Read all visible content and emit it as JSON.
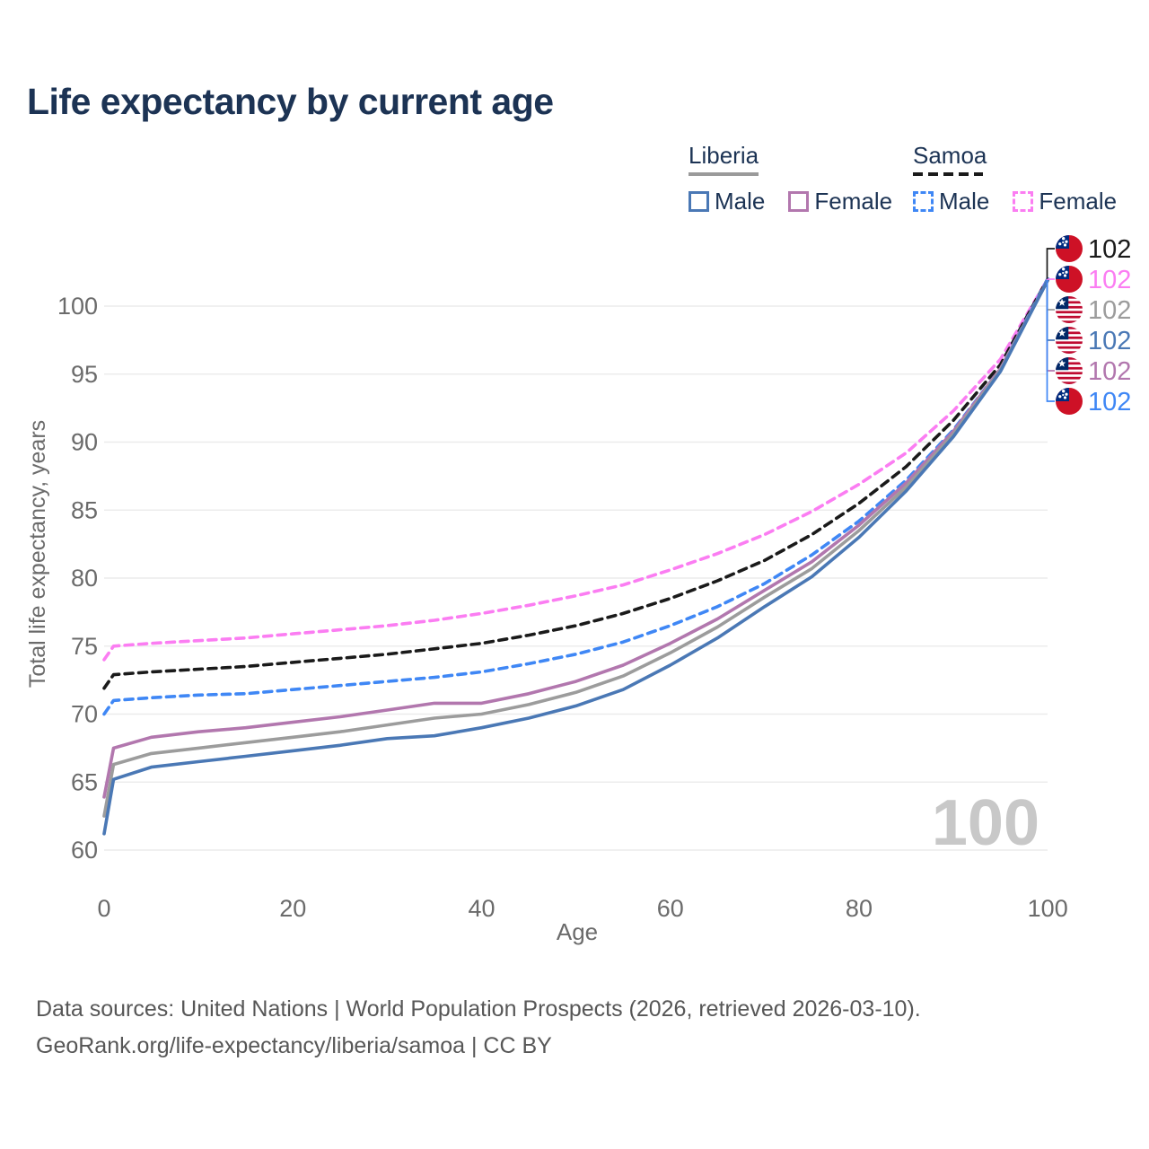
{
  "title": "Life expectancy by current age",
  "watermark": "100",
  "legend": {
    "groups": [
      {
        "label": "Liberia",
        "line_style": "solid",
        "underline_color": "#9a9a9a",
        "items": [
          {
            "label": "Male",
            "color": "#4a78b5"
          },
          {
            "label": "Female",
            "color": "#b277ae"
          }
        ]
      },
      {
        "label": "Samoa",
        "line_style": "dashed",
        "underline_color": "#1a1a1a",
        "items": [
          {
            "label": "Male",
            "color": "#3f87f5"
          },
          {
            "label": "Female",
            "color": "#fb7df2"
          }
        ]
      }
    ]
  },
  "chart_data": {
    "type": "line",
    "title": "Life expectancy by current age",
    "xlabel": "Age",
    "ylabel": "Total life expectancy, years",
    "xlim": [
      0,
      100
    ],
    "ylim": [
      58,
      103
    ],
    "x_ticks": [
      0,
      20,
      40,
      60,
      80,
      100
    ],
    "y_ticks": [
      60,
      65,
      70,
      75,
      80,
      85,
      90,
      95,
      100
    ],
    "grid": "horizontal-only",
    "legend_position": "top-right",
    "ages": [
      0,
      1,
      5,
      10,
      15,
      20,
      25,
      30,
      35,
      40,
      45,
      50,
      55,
      60,
      65,
      70,
      75,
      80,
      85,
      90,
      95,
      100
    ],
    "series": [
      {
        "name": "Samoa Female",
        "country": "Samoa",
        "sex": "Female",
        "style": "dashed",
        "color": "#fb7df2",
        "values": [
          74.0,
          75.0,
          75.2,
          75.4,
          75.6,
          75.9,
          76.2,
          76.5,
          76.9,
          77.4,
          78.0,
          78.7,
          79.5,
          80.6,
          81.8,
          83.2,
          84.9,
          86.9,
          89.2,
          92.3,
          96.1,
          102.0
        ]
      },
      {
        "name": "Samoa Total",
        "country": "Samoa",
        "sex": "Both",
        "style": "dashed",
        "color": "#1a1a1a",
        "values": [
          71.9,
          72.9,
          73.1,
          73.3,
          73.5,
          73.8,
          74.1,
          74.4,
          74.8,
          75.2,
          75.8,
          76.5,
          77.4,
          78.5,
          79.8,
          81.3,
          83.2,
          85.5,
          88.2,
          91.6,
          95.7,
          102.0
        ]
      },
      {
        "name": "Samoa Male",
        "country": "Samoa",
        "sex": "Male",
        "style": "dashed",
        "color": "#3f87f5",
        "values": [
          70.0,
          71.0,
          71.2,
          71.4,
          71.5,
          71.8,
          72.1,
          72.4,
          72.7,
          73.1,
          73.7,
          74.4,
          75.3,
          76.5,
          77.9,
          79.6,
          81.7,
          84.2,
          87.2,
          90.9,
          95.4,
          102.0
        ]
      },
      {
        "name": "Liberia Female",
        "country": "Liberia",
        "sex": "Female",
        "style": "solid",
        "color": "#b277ae",
        "values": [
          63.9,
          67.5,
          68.3,
          68.7,
          69.0,
          69.4,
          69.8,
          70.3,
          70.8,
          70.8,
          71.5,
          72.4,
          73.6,
          75.2,
          77.0,
          79.1,
          81.2,
          83.9,
          87.0,
          90.8,
          95.4,
          101.9
        ]
      },
      {
        "name": "Liberia Total",
        "country": "Liberia",
        "sex": "Both",
        "style": "solid",
        "color": "#9c9c9c",
        "values": [
          62.5,
          66.3,
          67.1,
          67.5,
          67.9,
          68.3,
          68.7,
          69.2,
          69.7,
          70.0,
          70.7,
          71.6,
          72.8,
          74.5,
          76.4,
          78.6,
          80.7,
          83.5,
          86.7,
          90.6,
          95.3,
          101.9
        ]
      },
      {
        "name": "Liberia Male",
        "country": "Liberia",
        "sex": "Male",
        "style": "solid",
        "color": "#4a78b5",
        "values": [
          61.2,
          65.2,
          66.1,
          66.5,
          66.9,
          67.3,
          67.7,
          68.2,
          68.4,
          69.0,
          69.7,
          70.6,
          71.8,
          73.6,
          75.6,
          77.9,
          80.1,
          83.0,
          86.4,
          90.4,
          95.2,
          101.9
        ]
      }
    ],
    "end_labels": [
      {
        "value": "102",
        "series": "Samoa Total",
        "flag": "samoa",
        "color": "#1a1a1a"
      },
      {
        "value": "102",
        "series": "Samoa Female",
        "flag": "samoa",
        "color": "#fb7df2"
      },
      {
        "value": "102",
        "series": "Liberia Total",
        "flag": "liberia",
        "color": "#9c9c9c"
      },
      {
        "value": "102",
        "series": "Liberia Male",
        "flag": "liberia",
        "color": "#4a78b5"
      },
      {
        "value": "102",
        "series": "Liberia Female",
        "flag": "liberia",
        "color": "#b277ae"
      },
      {
        "value": "102",
        "series": "Samoa Male",
        "flag": "samoa",
        "color": "#3f87f5"
      }
    ]
  },
  "footer": {
    "line1": "Data sources: United Nations | World Population Prospects (2026, retrieved 2026-03-10).",
    "line2": "GeoRank.org/life-expectancy/liberia/samoa | CC BY"
  }
}
